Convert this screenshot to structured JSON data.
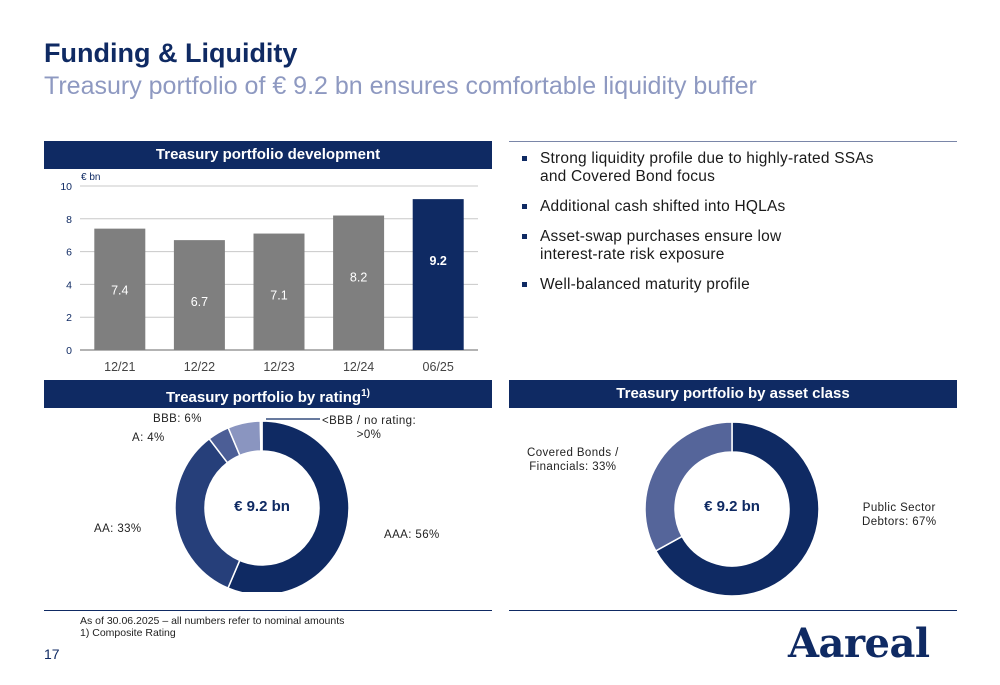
{
  "header": {
    "title": "Funding & Liquidity",
    "subtitle": "Treasury portfolio of € 9.2 bn ensures comfortable liquidity buffer"
  },
  "panels": {
    "development_title": "Treasury portfolio development",
    "rating_title": "Treasury portfolio by rating",
    "rating_title_sup": "1)",
    "asset_title": "Treasury portfolio by asset class"
  },
  "bullets": [
    "Strong liquidity profile due to highly-rated SSAs\nand Covered Bond focus",
    "Additional cash shifted into HQLAs",
    "Asset-swap purchases ensure low\ninterest-rate risk exposure",
    "Well-balanced maturity profile"
  ],
  "colors": {
    "navy": "#0f2a63",
    "bar_grey": "#7f7f7f",
    "rating_aaa": "#0f2a63",
    "rating_aa": "#263f7a",
    "rating_a": "#4c5e96",
    "rating_bbb": "#8a95c0",
    "asset_public": "#0f2a63",
    "asset_covered": "#55659a"
  },
  "chart_data": [
    {
      "type": "bar",
      "title": "Treasury portfolio development",
      "ylabel": "€ bn",
      "categories": [
        "12/21",
        "12/22",
        "12/23",
        "12/24",
        "06/25"
      ],
      "values": [
        7.4,
        6.7,
        7.1,
        8.2,
        9.2
      ],
      "data_labels": [
        "7.4",
        "6.7",
        "7.1",
        "8.2",
        "9.2"
      ],
      "highlight_index": 4,
      "ylim": [
        0,
        10
      ],
      "yticks": [
        "0",
        "2",
        "4",
        "6",
        "8",
        "10"
      ],
      "grid": true
    },
    {
      "type": "pie",
      "title": "Treasury portfolio by rating",
      "center_label": "€ 9.2 bn",
      "slices": [
        {
          "label": "AAA:  56%",
          "value": 56
        },
        {
          "label": "AA:  33%",
          "value": 33
        },
        {
          "label": "A:  4%",
          "value": 4
        },
        {
          "label": "BBB:  6%",
          "value": 6
        },
        {
          "label": "<BBB / no rating:\n>0%",
          "value": 0.3
        }
      ]
    },
    {
      "type": "pie",
      "title": "Treasury portfolio by asset class",
      "center_label": "€ 9.2 bn",
      "slices": [
        {
          "label": "Public Sector\nDebtors:  67%",
          "value": 67
        },
        {
          "label": "Covered Bonds /\nFinancials:  33%",
          "value": 33
        }
      ]
    }
  ],
  "footnote": {
    "line1": "As of 30.06.2025 – all numbers refer to nominal amounts",
    "line2": "1)   Composite Rating"
  },
  "page_number": "17",
  "logo_text": "Aareal"
}
